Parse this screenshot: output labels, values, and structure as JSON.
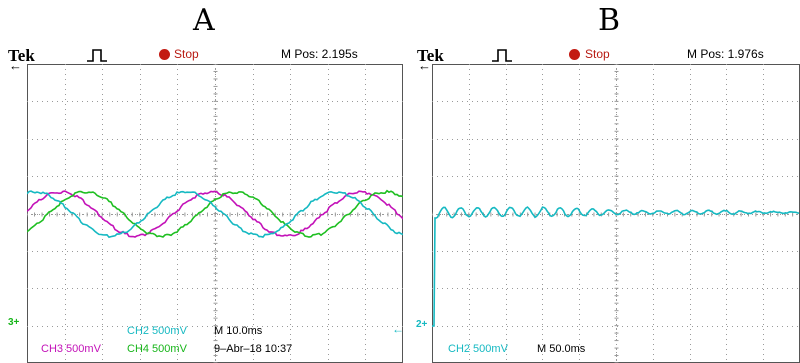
{
  "colors": {
    "ch2": "#16b9c2",
    "ch3": "#c312b8",
    "ch4": "#1fbf22",
    "grid": "#9a9a9a",
    "stop": "#c31a12"
  },
  "panel_a": {
    "letter": "A",
    "brand": "Tek",
    "trigger_icon": "pulse-trigger-icon",
    "stop_label": "Stop",
    "mpos": "M Pos: 2.195s",
    "ground_marker": "3+",
    "trigger_marker": "←",
    "footer": {
      "ch2": "CH2  500mV",
      "ch3": "CH3  500mV",
      "ch4": "CH4  500mV",
      "timebase": "M 10.0ms",
      "date": "9–Abr–18 10:37"
    }
  },
  "panel_b": {
    "letter": "B",
    "brand": "Tek",
    "trigger_icon": "pulse-trigger-icon",
    "stop_label": "Stop",
    "mpos": "M Pos: 1.976s",
    "ground_marker": "2+",
    "footer": {
      "ch2": "CH2  500mV",
      "timebase": "M 50.0ms"
    }
  }
}
